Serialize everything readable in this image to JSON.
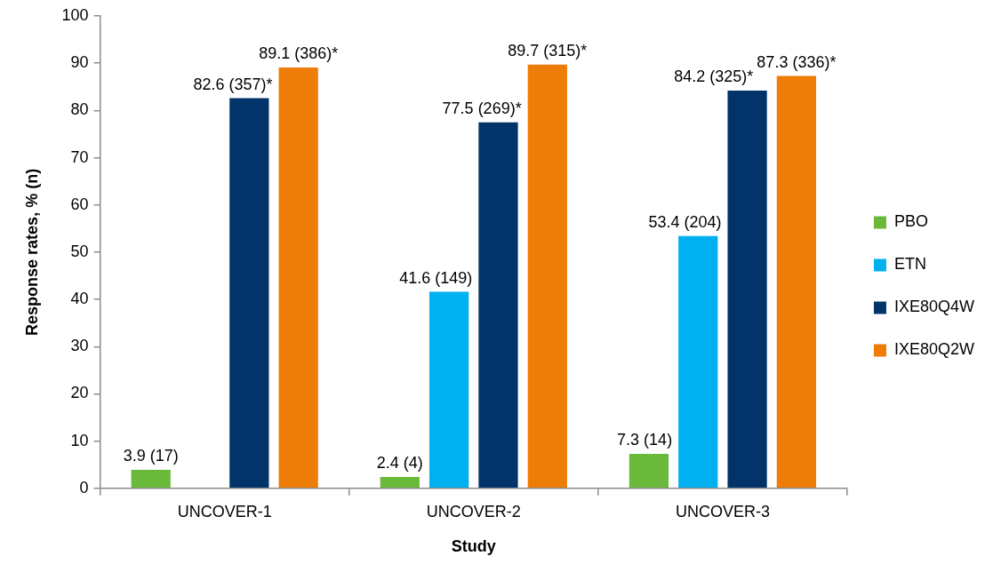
{
  "chart_data": {
    "type": "bar",
    "xlabel": "Study",
    "ylabel": "Response rates, % (n)",
    "categories": [
      "UNCOVER-1",
      "UNCOVER-2",
      "UNCOVER-3"
    ],
    "series": [
      {
        "name": "PBO",
        "color": "#6bb93a",
        "values": [
          3.9,
          2.4,
          7.3
        ],
        "value_labels": [
          "3.9 (17)",
          "2.4 (4)",
          "7.3 (14)"
        ]
      },
      {
        "name": "ETN",
        "color": "#00b0f0",
        "values": [
          null,
          41.6,
          53.4
        ],
        "value_labels": [
          null,
          "41.6 (149)",
          "53.4 (204)"
        ]
      },
      {
        "name": "IXE80Q4W",
        "color": "#033469",
        "values": [
          82.6,
          77.5,
          84.2
        ],
        "value_labels": [
          "82.6 (357)*",
          "77.5 (269)*",
          "84.2 (325)*"
        ]
      },
      {
        "name": "IXE80Q2W",
        "color": "#ee7d08",
        "values": [
          89.1,
          89.7,
          87.3
        ],
        "value_labels": [
          "89.1 (386)*",
          "89.7 (315)*",
          "87.3 (336)*"
        ]
      }
    ],
    "ylim": [
      0,
      100
    ],
    "yticks": [
      0,
      10,
      20,
      30,
      40,
      50,
      60,
      70,
      80,
      90,
      100
    ],
    "grid": false,
    "legend": "right"
  }
}
